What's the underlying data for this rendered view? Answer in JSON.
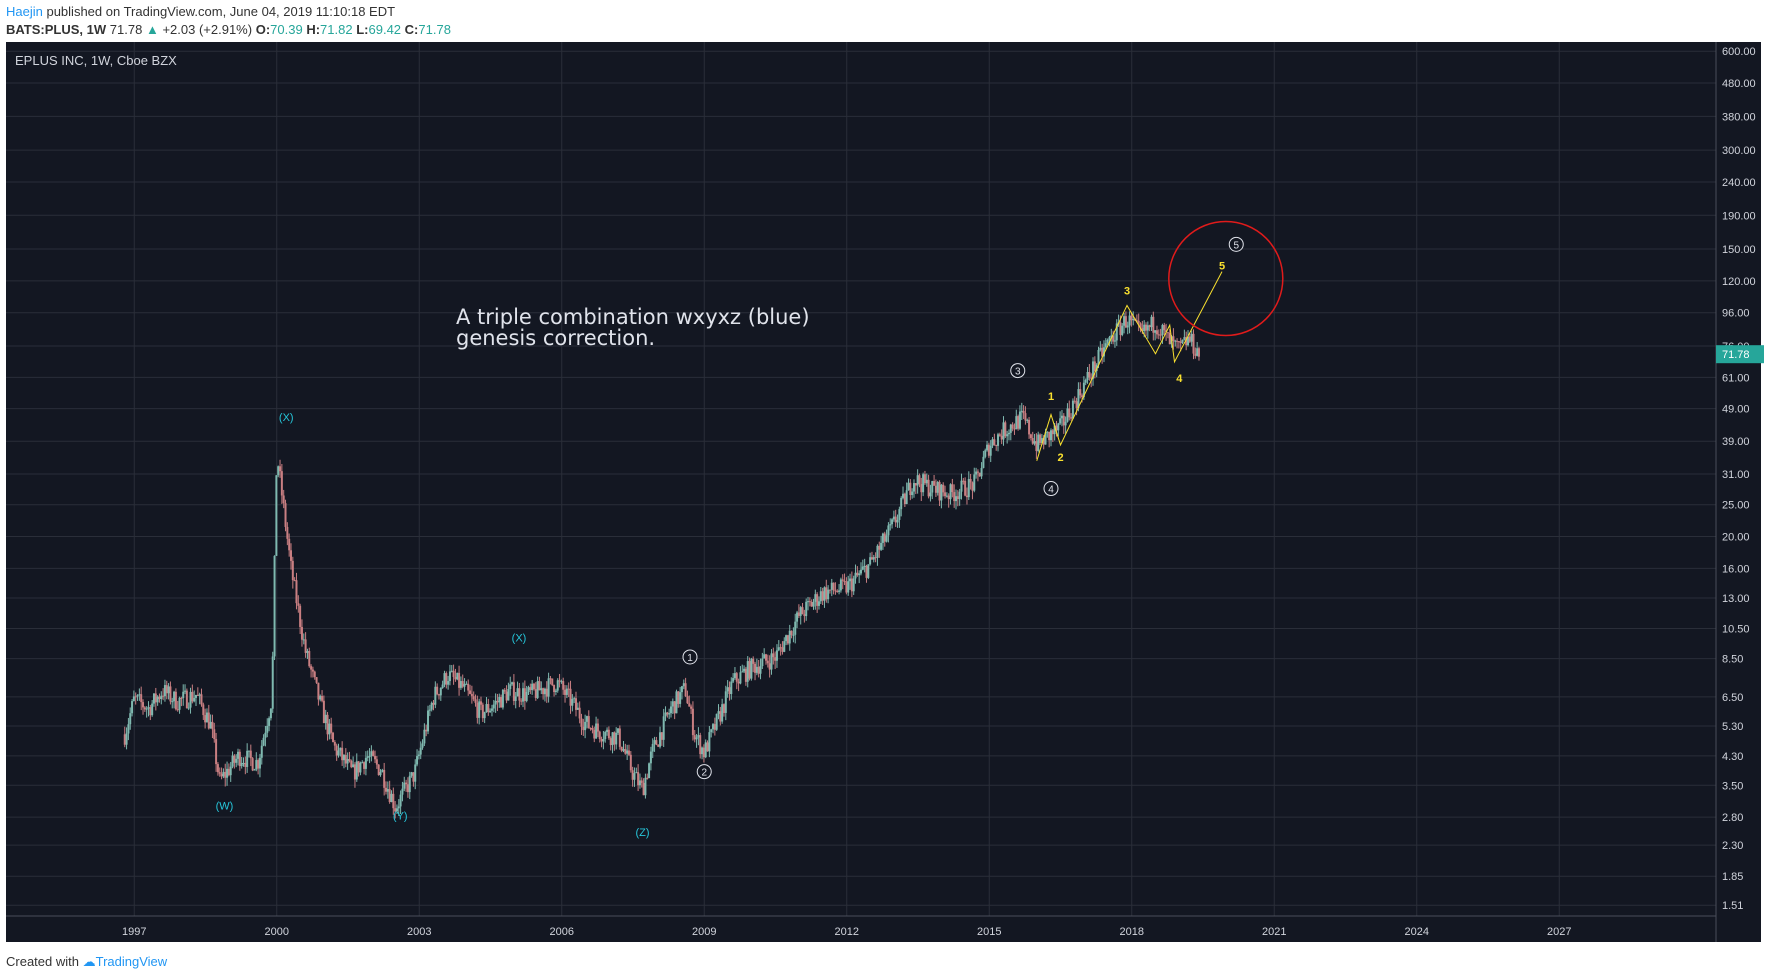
{
  "header": {
    "author": "Haejin",
    "published_text": " published on TradingView.com, June 04, 2019 11:10:18 EDT",
    "symbol": "BATS:PLUS, 1W",
    "last": "71.78",
    "change_arrow": "▲",
    "change": "+2.03 (+2.91%)",
    "o_label": "O:",
    "o": "70.39",
    "h_label": "H:",
    "h": "71.82",
    "l_label": "L:",
    "l": "69.42",
    "c_label": "C:",
    "c": "71.78"
  },
  "footer": {
    "created_with": "Created with",
    "brand": "TradingView"
  },
  "colors": {
    "background": "#131722",
    "grid": "#2a2e39",
    "text": "#b2b5be",
    "cyan": "#26c6da",
    "yellow": "#f9e02f",
    "red": "#e01b1b",
    "candle_up": "#7fb9b0",
    "candle_down": "#c97f82",
    "price_badge": "#26a69a"
  },
  "chart_data": {
    "type": "candlestick",
    "title": "EPLUS INC, 1W, Cboe BZX",
    "scale": "log",
    "ylim": [
      1.4,
      640
    ],
    "xlim": [
      1994.3,
      2030.3
    ],
    "x_ticks": [
      1997,
      2000,
      2003,
      2006,
      2009,
      2012,
      2015,
      2018,
      2021,
      2024,
      2027
    ],
    "y_ticks": [
      "600.00",
      "480.00",
      "380.00",
      "300.00",
      "240.00",
      "190.00",
      "150.00",
      "120.00",
      "96.00",
      "76.00",
      "61.00",
      "49.00",
      "39.00",
      "31.00",
      "25.00",
      "20.00",
      "16.00",
      "13.00",
      "10.50",
      "8.50",
      "6.50",
      "5.30",
      "4.30",
      "3.50",
      "2.80",
      "2.30",
      "1.85",
      "1.51"
    ],
    "last_price": "71.78",
    "price_path": [
      [
        1996.8,
        5.0
      ],
      [
        1997.0,
        6.4
      ],
      [
        1997.3,
        6.0
      ],
      [
        1997.6,
        6.8
      ],
      [
        1997.9,
        6.3
      ],
      [
        1998.3,
        6.6
      ],
      [
        1998.6,
        5.4
      ],
      [
        1998.8,
        3.6
      ],
      [
        1999.2,
        4.3
      ],
      [
        1999.6,
        4.1
      ],
      [
        1999.9,
        6.5
      ],
      [
        2000.0,
        36.0
      ],
      [
        2000.3,
        16.0
      ],
      [
        2000.6,
        9.0
      ],
      [
        2000.9,
        6.3
      ],
      [
        2001.2,
        4.6
      ],
      [
        2001.6,
        3.8
      ],
      [
        2001.9,
        4.3
      ],
      [
        2002.2,
        3.9
      ],
      [
        2002.5,
        3.0
      ],
      [
        2002.9,
        3.8
      ],
      [
        2003.3,
        6.5
      ],
      [
        2003.6,
        7.6
      ],
      [
        2003.9,
        7.0
      ],
      [
        2004.3,
        5.8
      ],
      [
        2004.6,
        6.2
      ],
      [
        2004.9,
        6.8
      ],
      [
        2005.3,
        6.6
      ],
      [
        2005.6,
        6.9
      ],
      [
        2005.9,
        7.2
      ],
      [
        2006.2,
        6.3
      ],
      [
        2006.5,
        5.4
      ],
      [
        2006.8,
        5.1
      ],
      [
        2007.2,
        4.9
      ],
      [
        2007.5,
        3.8
      ],
      [
        2007.7,
        3.4
      ],
      [
        2007.9,
        4.4
      ],
      [
        2008.3,
        6.0
      ],
      [
        2008.6,
        6.9
      ],
      [
        2008.8,
        5.0
      ],
      [
        2009.0,
        4.4
      ],
      [
        2009.3,
        5.6
      ],
      [
        2009.6,
        7.2
      ],
      [
        2010.0,
        8.0
      ],
      [
        2010.5,
        8.6
      ],
      [
        2011.0,
        11.5
      ],
      [
        2011.5,
        13.5
      ],
      [
        2012.0,
        14.0
      ],
      [
        2012.5,
        16.5
      ],
      [
        2013.0,
        22.0
      ],
      [
        2013.4,
        30.0
      ],
      [
        2013.8,
        28.0
      ],
      [
        2014.2,
        27.0
      ],
      [
        2014.7,
        29.0
      ],
      [
        2015.0,
        38.0
      ],
      [
        2015.3,
        42.0
      ],
      [
        2015.7,
        46.0
      ],
      [
        2016.0,
        38.0
      ],
      [
        2016.5,
        43.0
      ],
      [
        2017.0,
        58.0
      ],
      [
        2017.5,
        78.0
      ],
      [
        2017.9,
        92.0
      ],
      [
        2018.2,
        82.0
      ],
      [
        2018.5,
        90.0
      ],
      [
        2018.8,
        78.0
      ],
      [
        2019.0,
        74.0
      ],
      [
        2019.2,
        80.0
      ],
      [
        2019.43,
        71.78
      ]
    ],
    "annotations": {
      "text": [
        "A triple combination wxyxz (blue)",
        "genesis correction."
      ],
      "cyan_labels": [
        {
          "label": "(X)",
          "x": 2000.2,
          "y": 45.0
        },
        {
          "label": "(W)",
          "x": 1998.9,
          "y": 2.95
        },
        {
          "label": "(Y)",
          "x": 2002.6,
          "y": 2.75
        },
        {
          "label": "(X)",
          "x": 2005.1,
          "y": 9.6
        },
        {
          "label": "(Z)",
          "x": 2007.7,
          "y": 2.45
        }
      ],
      "circled_labels": [
        {
          "label": "1",
          "x": 2008.7,
          "y": 8.6
        },
        {
          "label": "2",
          "x": 2009.0,
          "y": 3.85
        },
        {
          "label": "3",
          "x": 2015.6,
          "y": 64.0
        },
        {
          "label": "4",
          "x": 2016.3,
          "y": 28.0
        },
        {
          "label": "5",
          "x": 2020.2,
          "y": 155.0
        }
      ],
      "yellow_labels": [
        {
          "label": "1",
          "x": 2016.3,
          "y": 52.0
        },
        {
          "label": "2",
          "x": 2016.5,
          "y": 34.0
        },
        {
          "label": "3",
          "x": 2017.9,
          "y": 109.0
        },
        {
          "label": "4",
          "x": 2019.0,
          "y": 59.0
        },
        {
          "label": "5",
          "x": 2019.9,
          "y": 130.0
        }
      ],
      "yellow_path": [
        [
          2016.0,
          34.0
        ],
        [
          2016.3,
          47.0
        ],
        [
          2016.5,
          38.0
        ],
        [
          2017.9,
          101.0
        ],
        [
          2018.5,
          72.0
        ],
        [
          2018.8,
          88.0
        ],
        [
          2018.9,
          68.0
        ],
        [
          2019.9,
          128.0
        ]
      ],
      "red_circle": {
        "x": 2019.98,
        "y": 122.0
      }
    }
  }
}
